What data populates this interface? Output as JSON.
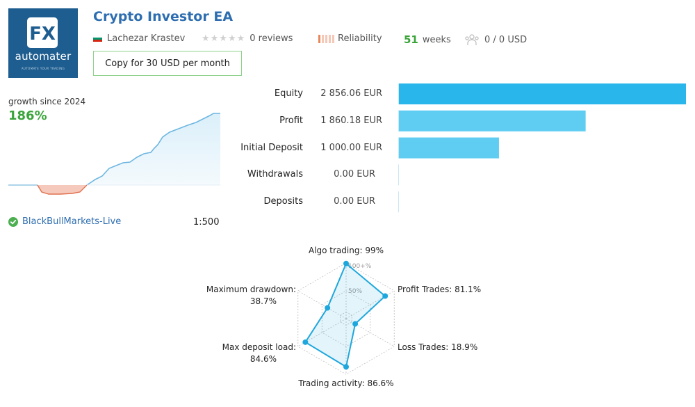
{
  "header": {
    "title": "Crypto Investor EA",
    "author": "Lachezar Krastev",
    "reviews": "0 reviews",
    "reliability_label": "Reliability",
    "weeks_value": "51",
    "weeks_label": "weeks",
    "subscribers": "0 / 0 USD",
    "copy_button": "Copy for 30 USD per month"
  },
  "logo": {
    "mark": "FX",
    "brand": "automater",
    "tagline": "AUTOMATE YOUR TRADING"
  },
  "growth": {
    "label": "growth since 2024",
    "value": "186%"
  },
  "account": {
    "broker": "BlackBullMarkets-Live",
    "leverage": "1:500"
  },
  "stats": [
    {
      "label": "Equity",
      "value_text": "2 856.06 EUR",
      "value": 2856.06
    },
    {
      "label": "Profit",
      "value_text": "1 860.18 EUR",
      "value": 1860.18
    },
    {
      "label": "Initial Deposit",
      "value_text": "1 000.00 EUR",
      "value": 1000.0
    },
    {
      "label": "Withdrawals",
      "value_text": "0.00 EUR",
      "value": 0
    },
    {
      "label": "Deposits",
      "value_text": "0.00 EUR",
      "value": 0
    }
  ],
  "radar": {
    "ring_labels": [
      "100+%",
      "50%"
    ],
    "axes": [
      {
        "key": "algo",
        "label": "Algo trading: 99%",
        "value": 99
      },
      {
        "key": "profit",
        "label": "Profit Trades: 81.1%",
        "value": 81.1
      },
      {
        "key": "loss",
        "label": "Loss Trades: 18.9%",
        "value": 18.9
      },
      {
        "key": "activity",
        "label": "Trading activity: 86.6%",
        "value": 86.6
      },
      {
        "key": "load",
        "label_lines": [
          "Max deposit load:",
          "84.6%"
        ],
        "value": 84.6
      },
      {
        "key": "dd",
        "label_lines": [
          "Maximum drawdown:",
          "38.7%"
        ],
        "value": 38.7
      }
    ]
  },
  "colors": {
    "title": "#2e6eb0",
    "accent_green": "#3aa43a",
    "bar_main": "#29b6ea",
    "bar_light": "#5fcdf2",
    "radar_stroke": "#1ea7dc",
    "loss_fill": "#f6c9bd"
  }
}
